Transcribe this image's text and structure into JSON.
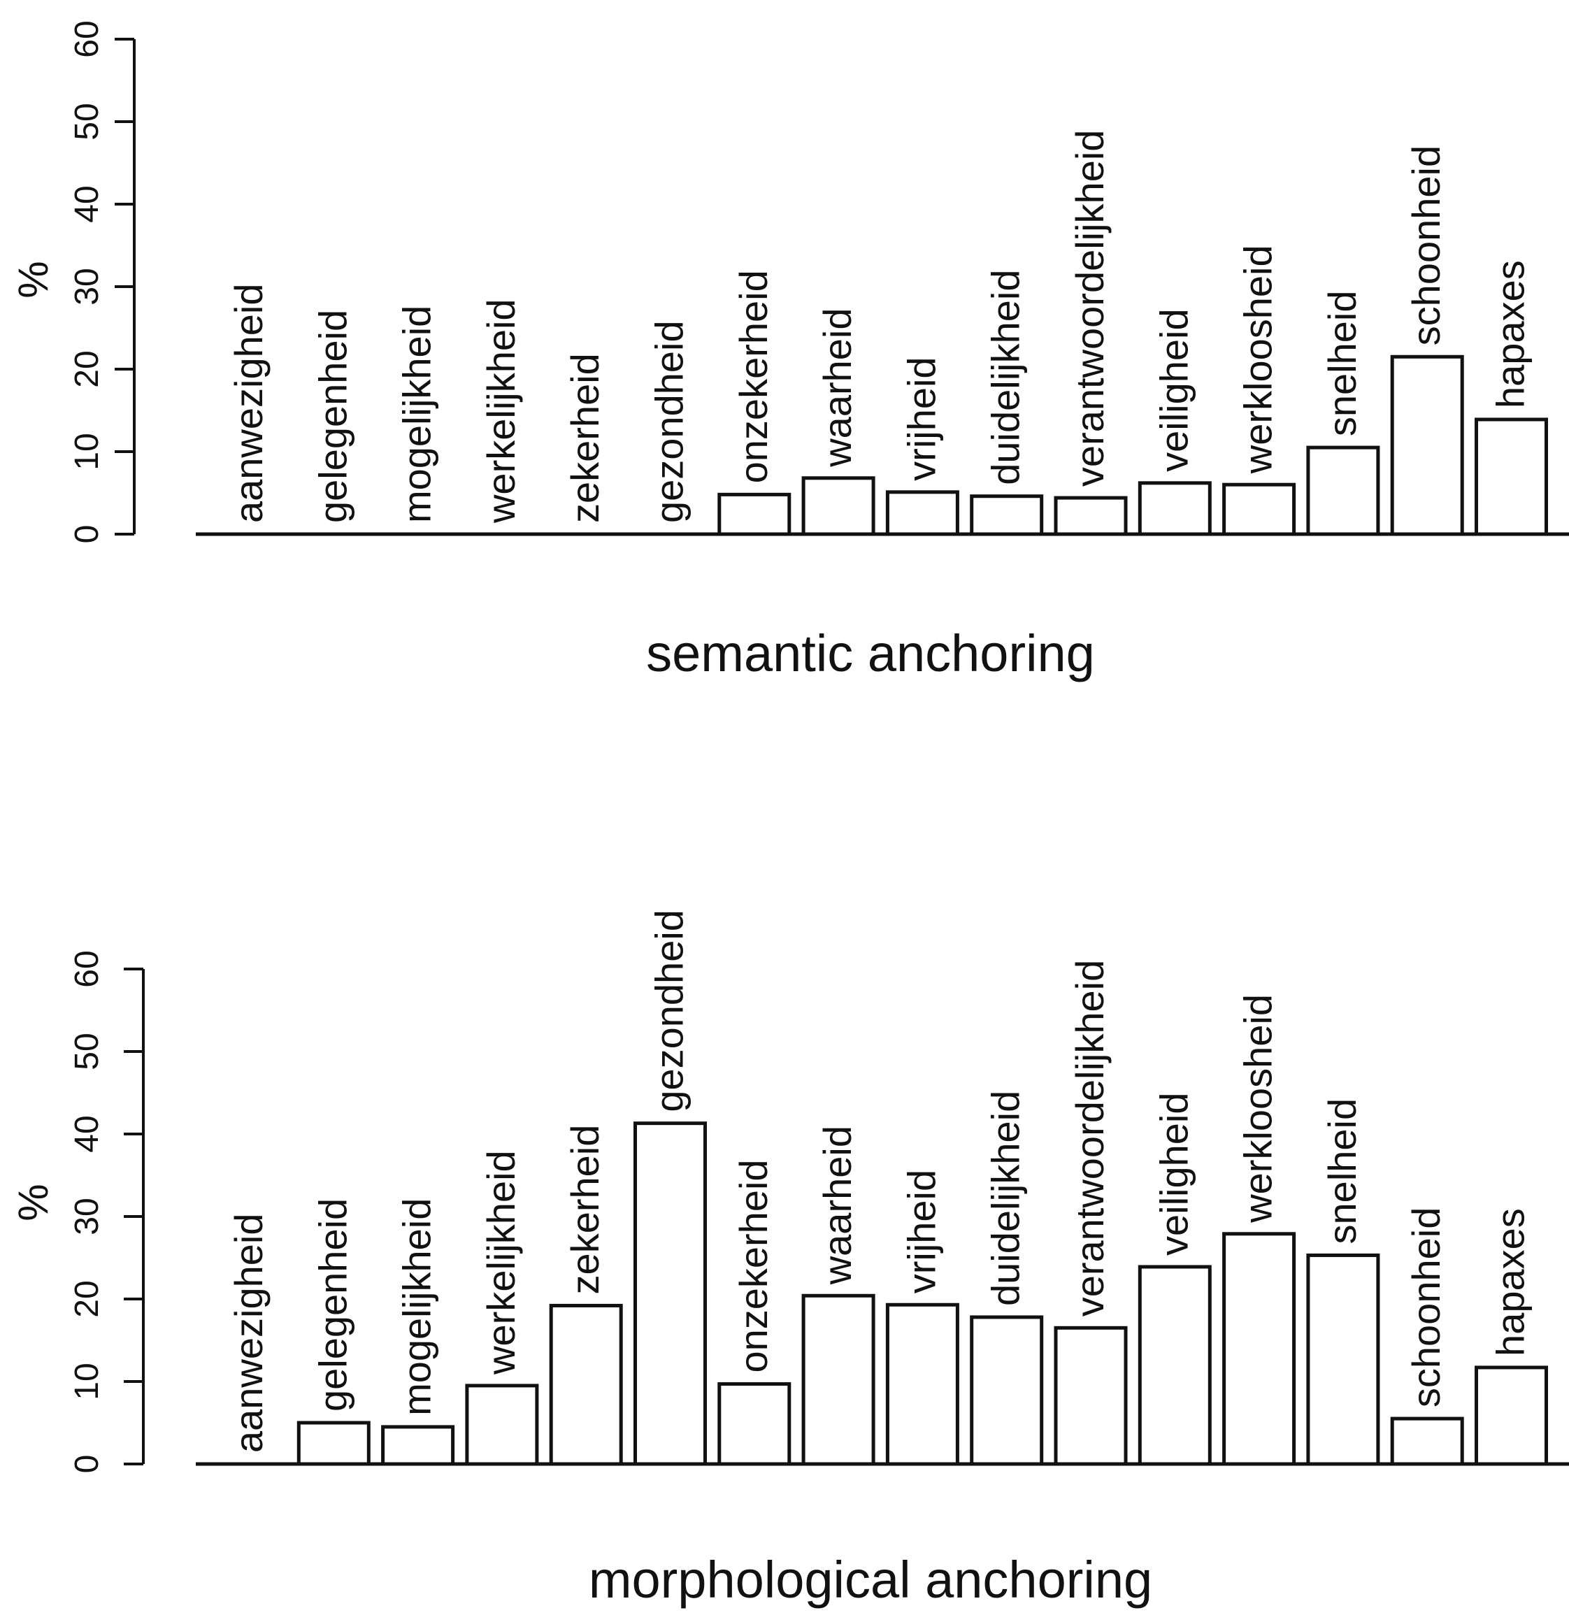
{
  "chart_data": [
    {
      "type": "bar",
      "xlabel": "semantic anchoring",
      "ylabel": "%",
      "ylim": [
        0,
        60
      ],
      "yticks": [
        "0",
        "10",
        "20",
        "30",
        "40",
        "50",
        "60"
      ],
      "grid": false,
      "categories": [
        "aanwezigheid",
        "gelegenheid",
        "mogelijkheid",
        "werkelijkheid",
        "zekerheid",
        "gezondheid",
        "onzekerheid",
        "waarheid",
        "vrijheid",
        "duidelijkheid",
        "verantwoordelijkheid",
        "veiligheid",
        "werkloosheid",
        "snelheid",
        "schoonheid",
        "hapaxes"
      ],
      "values": [
        0,
        0,
        0,
        0,
        0,
        0,
        4.8,
        6.8,
        5.1,
        4.6,
        4.4,
        6.2,
        6.0,
        10.5,
        21.5,
        13.9
      ]
    },
    {
      "type": "bar",
      "xlabel": "morphological anchoring",
      "ylabel": "%",
      "ylim": [
        0,
        60
      ],
      "yticks": [
        "0",
        "10",
        "20",
        "30",
        "40",
        "50",
        "60"
      ],
      "grid": false,
      "categories": [
        "aanwezigheid",
        "gelegenheid",
        "mogelijkheid",
        "werkelijkheid",
        "zekerheid",
        "gezondheid",
        "onzekerheid",
        "waarheid",
        "vrijheid",
        "duidelijkheid",
        "verantwoordelijkheid",
        "veiligheid",
        "werkloosheid",
        "snelheid",
        "schoonheid",
        "hapaxes"
      ],
      "values": [
        0,
        5.0,
        4.5,
        9.5,
        19.2,
        41.3,
        9.7,
        20.4,
        19.3,
        17.8,
        16.5,
        23.9,
        27.9,
        25.3,
        5.5,
        11.7
      ]
    }
  ]
}
